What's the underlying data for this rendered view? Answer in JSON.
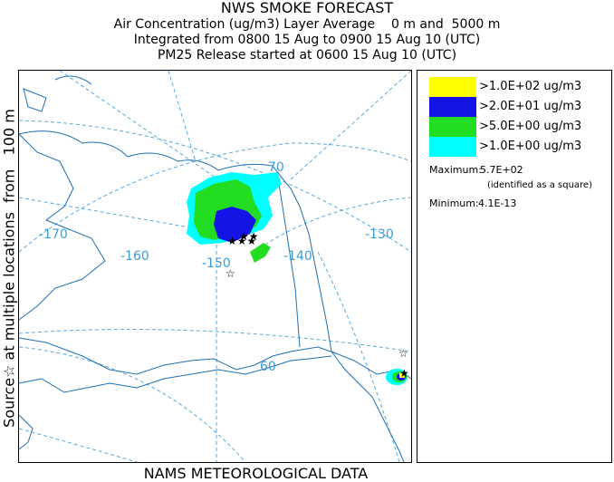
{
  "title": {
    "line1": "NWS SMOKE FORECAST",
    "line2": "Air Concentration (ug/m3) Layer Average    0 m and  5000 m",
    "line3": "Integrated from 0800 15 Aug to 0900 15 Aug 10 (UTC)",
    "line4": "PM25 Release started at 0600 15 Aug 10 (UTC)"
  },
  "side_label": "Source☆ at multiple locations  from   100 m",
  "bottom_label": "NAMS METEOROLOGICAL DATA",
  "map": {
    "longitude_labels": [
      "-170",
      "-160",
      "-150",
      "-140",
      "-130"
    ],
    "latitude_labels": [
      "70",
      "60"
    ],
    "colors": {
      "coast": "#1f6fb5",
      "grid": "#5aa9dc",
      "yellow": "#ffff00",
      "blue": "#1414e6",
      "green": "#22dd22",
      "cyan": "#00ffff"
    }
  },
  "legend": {
    "items": [
      {
        "label": ">1.0E+02 ug/m3",
        "color": "#ffff00"
      },
      {
        "label": ">2.0E+01 ug/m3",
        "color": "#1414e6"
      },
      {
        "label": ">5.0E+00 ug/m3",
        "color": "#22dd22"
      },
      {
        "label": ">1.0E+00 ug/m3",
        "color": "#00ffff"
      }
    ],
    "maximum_label": "Maximum:",
    "maximum_value": "5.7E+02",
    "maximum_note": "(identified as a square)",
    "minimum_label": "Minimum:",
    "minimum_value": "4.1E-13"
  }
}
